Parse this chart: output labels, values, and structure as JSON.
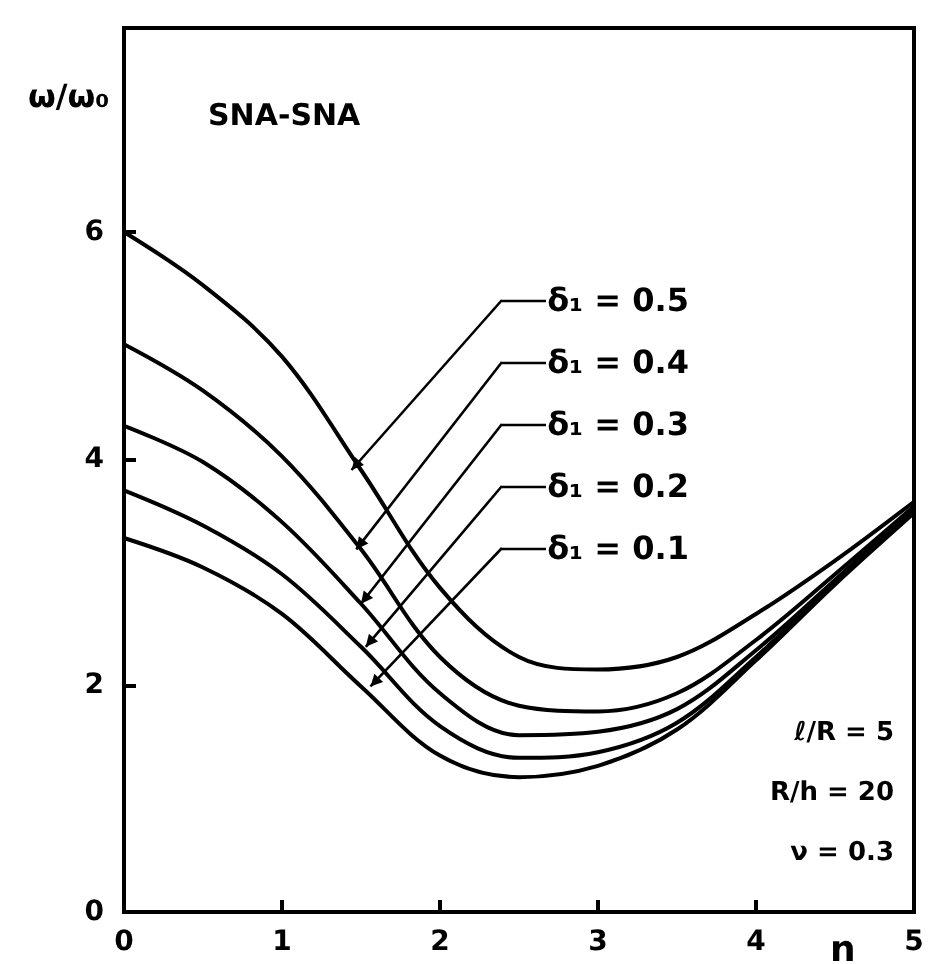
{
  "chart_data": {
    "type": "line",
    "xlabel": "n",
    "ylabel": "ω/ω₀",
    "x": [
      0,
      0.5,
      1,
      1.5,
      2,
      2.5,
      3,
      3.5,
      4,
      4.5,
      5
    ],
    "series": [
      {
        "name": "δ₁ = 0.5",
        "color": "#000000",
        "values": [
          6.0,
          5.53,
          4.9,
          3.9,
          2.86,
          2.25,
          2.14,
          2.25,
          2.63,
          3.1,
          3.62
        ]
      },
      {
        "name": "δ₁ = 0.4",
        "color": "#000000",
        "values": [
          5.01,
          4.6,
          4.02,
          3.2,
          2.25,
          1.82,
          1.77,
          1.93,
          2.4,
          2.98,
          3.58
        ]
      },
      {
        "name": "δ₁ = 0.3",
        "color": "#000000",
        "values": [
          4.29,
          3.97,
          3.44,
          2.72,
          1.93,
          1.56,
          1.59,
          1.79,
          2.31,
          2.93,
          3.56
        ]
      },
      {
        "name": "δ₁ = 0.2",
        "color": "#000000",
        "values": [
          3.72,
          3.41,
          2.98,
          2.34,
          1.64,
          1.36,
          1.41,
          1.67,
          2.25,
          2.91,
          3.54
        ]
      },
      {
        "name": "δ₁ = 0.1",
        "color": "#000000",
        "values": [
          3.3,
          3.04,
          2.63,
          1.99,
          1.38,
          1.19,
          1.29,
          1.61,
          2.22,
          2.89,
          3.52
        ]
      }
    ],
    "xlim": [
      0,
      5
    ],
    "xticks": [
      0,
      1,
      2,
      3,
      4,
      5
    ],
    "ylim": [
      0,
      7.8
    ],
    "yticks": [
      0,
      2,
      4,
      6
    ],
    "annotations": [
      "SNA-SNA",
      "ℓ/R = 5",
      "R/h = 20",
      "ν = 0.3"
    ],
    "grid": false,
    "legend": "right",
    "marker": "none",
    "line_style": "solid"
  }
}
